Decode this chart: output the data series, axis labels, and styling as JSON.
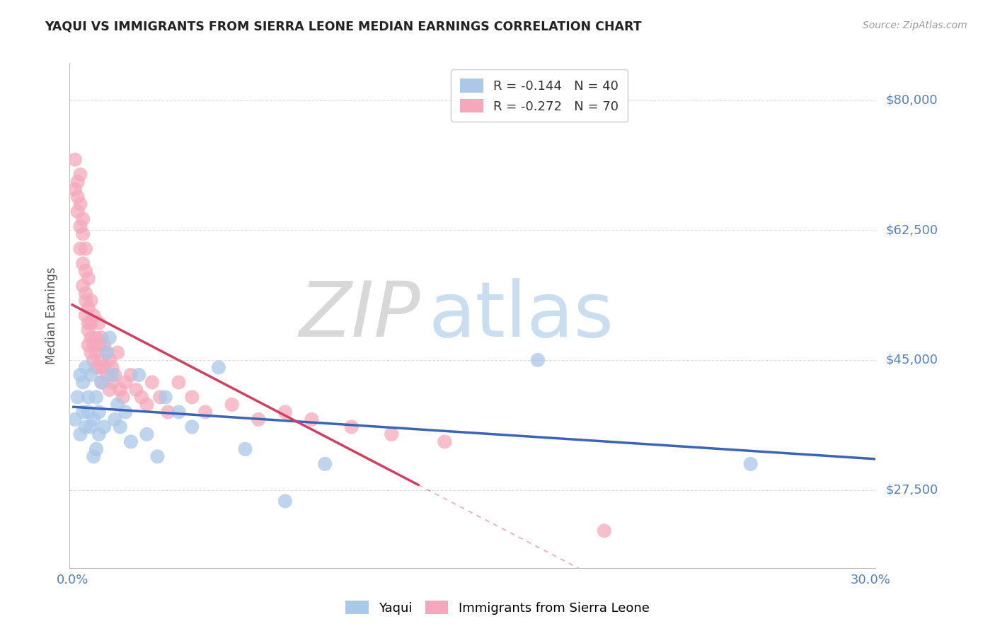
{
  "title": "YAQUI VS IMMIGRANTS FROM SIERRA LEONE MEDIAN EARNINGS CORRELATION CHART",
  "source": "Source: ZipAtlas.com",
  "ylabel": "Median Earnings",
  "xlim": [
    -0.001,
    0.302
  ],
  "ylim": [
    17000,
    85000
  ],
  "yticks": [
    27500,
    45000,
    62500,
    80000
  ],
  "ytick_labels": [
    "$27,500",
    "$45,000",
    "$62,500",
    "$80,000"
  ],
  "xticks": [
    0.0,
    0.05,
    0.1,
    0.15,
    0.2,
    0.25,
    0.3
  ],
  "blue_scatter_color": "#aac8e8",
  "pink_scatter_color": "#f5a8bc",
  "blue_line_color": "#3a65b5",
  "pink_line_color": "#d04060",
  "axis_color": "#5080c0",
  "background_color": "#ffffff",
  "grid_color": "#cccccc",
  "yaqui_x": [
    0.001,
    0.002,
    0.003,
    0.003,
    0.004,
    0.004,
    0.005,
    0.005,
    0.006,
    0.006,
    0.007,
    0.007,
    0.008,
    0.008,
    0.009,
    0.009,
    0.01,
    0.01,
    0.011,
    0.012,
    0.013,
    0.014,
    0.015,
    0.016,
    0.017,
    0.018,
    0.02,
    0.022,
    0.025,
    0.028,
    0.032,
    0.035,
    0.04,
    0.045,
    0.055,
    0.065,
    0.08,
    0.095,
    0.175,
    0.255
  ],
  "yaqui_y": [
    37000,
    40000,
    35000,
    43000,
    38000,
    42000,
    36000,
    44000,
    40000,
    38000,
    43000,
    36000,
    37000,
    32000,
    40000,
    33000,
    35000,
    38000,
    42000,
    36000,
    46000,
    48000,
    43000,
    37000,
    39000,
    36000,
    38000,
    34000,
    43000,
    35000,
    32000,
    40000,
    38000,
    36000,
    44000,
    33000,
    26000,
    31000,
    45000,
    31000
  ],
  "sierra_leone_x": [
    0.001,
    0.001,
    0.002,
    0.002,
    0.002,
    0.003,
    0.003,
    0.003,
    0.003,
    0.004,
    0.004,
    0.004,
    0.004,
    0.005,
    0.005,
    0.005,
    0.005,
    0.005,
    0.006,
    0.006,
    0.006,
    0.006,
    0.006,
    0.007,
    0.007,
    0.007,
    0.007,
    0.008,
    0.008,
    0.008,
    0.009,
    0.009,
    0.009,
    0.01,
    0.01,
    0.01,
    0.011,
    0.011,
    0.011,
    0.012,
    0.012,
    0.013,
    0.013,
    0.014,
    0.014,
    0.015,
    0.015,
    0.016,
    0.017,
    0.018,
    0.019,
    0.02,
    0.022,
    0.024,
    0.026,
    0.028,
    0.03,
    0.033,
    0.036,
    0.04,
    0.045,
    0.05,
    0.06,
    0.07,
    0.08,
    0.09,
    0.105,
    0.12,
    0.14,
    0.2
  ],
  "sierra_leone_y": [
    72000,
    68000,
    69000,
    67000,
    65000,
    66000,
    63000,
    70000,
    60000,
    64000,
    58000,
    62000,
    55000,
    60000,
    57000,
    54000,
    53000,
    51000,
    56000,
    52000,
    50000,
    49000,
    47000,
    53000,
    50000,
    48000,
    46000,
    51000,
    47000,
    45000,
    48000,
    46000,
    44000,
    50000,
    47000,
    44000,
    48000,
    45000,
    42000,
    47000,
    44000,
    46000,
    43000,
    45000,
    41000,
    44000,
    42000,
    43000,
    46000,
    41000,
    40000,
    42000,
    43000,
    41000,
    40000,
    39000,
    42000,
    40000,
    38000,
    42000,
    40000,
    38000,
    39000,
    37000,
    38000,
    37000,
    36000,
    35000,
    34000,
    22000
  ],
  "pink_line_start_x": 0.0,
  "pink_line_end_solid_x": 0.13,
  "pink_line_end_x": 0.302,
  "blue_line_start_x": 0.0,
  "blue_line_end_x": 0.302
}
